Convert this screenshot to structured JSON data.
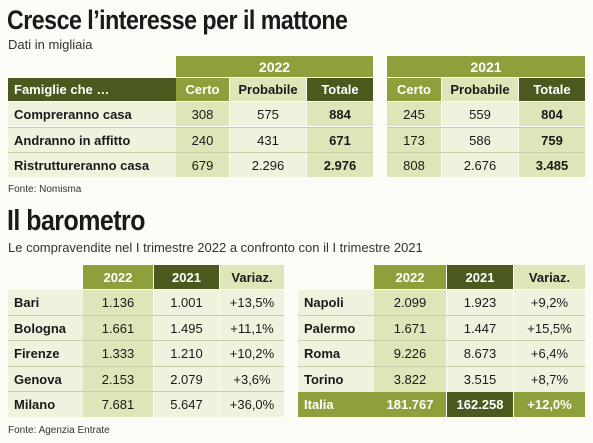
{
  "section1": {
    "title": "Cresce l’interesse per il mattone",
    "subtitle": "Dati in migliaia",
    "source": "Fonte: Nomisma",
    "year_a": "2022",
    "year_b": "2021",
    "header_label": "Famiglie che …",
    "col_certo": "Certo",
    "col_probabile": "Probabile",
    "col_totale": "Totale",
    "rows": [
      {
        "label": "Compreranno casa",
        "a_certo": "308",
        "a_prob": "575",
        "a_tot": "884",
        "b_certo": "245",
        "b_prob": "559",
        "b_tot": "804"
      },
      {
        "label": "Andranno in affitto",
        "a_certo": "240",
        "a_prob": "431",
        "a_tot": "671",
        "b_certo": "173",
        "b_prob": "586",
        "b_tot": "759"
      },
      {
        "label": "Ristrutture­ranno casa",
        "a_certo": "679",
        "a_prob": "2.296",
        "a_tot": "2.976",
        "b_certo": "808",
        "b_prob": "2.676",
        "b_tot": "3.485"
      }
    ]
  },
  "section2": {
    "title": "Il barometro",
    "subtitle": "Le compravendite nel I trimestre 2022 a confronto con il I trimestre 2021",
    "source": "Fonte: Agenzia Entrate",
    "col_2022": "2022",
    "col_2021": "2021",
    "col_var": "Variaz.",
    "left_rows": [
      {
        "city": "Bari",
        "v2022": "1.136",
        "v2021": "1.001",
        "var": "+13,5%"
      },
      {
        "city": "Bologna",
        "v2022": "1.661",
        "v2021": "1.495",
        "var": "+11,1%"
      },
      {
        "city": "Firenze",
        "v2022": "1.333",
        "v2021": "1.210",
        "var": "+10,2%"
      },
      {
        "city": "Genova",
        "v2022": "2.153",
        "v2021": "2.079",
        "var": "+3,6%"
      },
      {
        "city": "Milano",
        "v2022": "7.681",
        "v2021": "5.647",
        "var": "+36,0%"
      }
    ],
    "right_rows": [
      {
        "city": "Napoli",
        "v2022": "2.099",
        "v2021": "1.923",
        "var": "+9,2%"
      },
      {
        "city": "Palermo",
        "v2022": "1.671",
        "v2021": "1.447",
        "var": "+15,5%"
      },
      {
        "city": "Roma",
        "v2022": "9.226",
        "v2021": "8.673",
        "var": "+6,4%"
      },
      {
        "city": "Torino",
        "v2022": "3.822",
        "v2021": "3.515",
        "var": "+8,7%"
      }
    ],
    "total_row": {
      "city": "Italia",
      "v2022": "181.767",
      "v2021": "162.258",
      "var": "+12,0%"
    }
  }
}
